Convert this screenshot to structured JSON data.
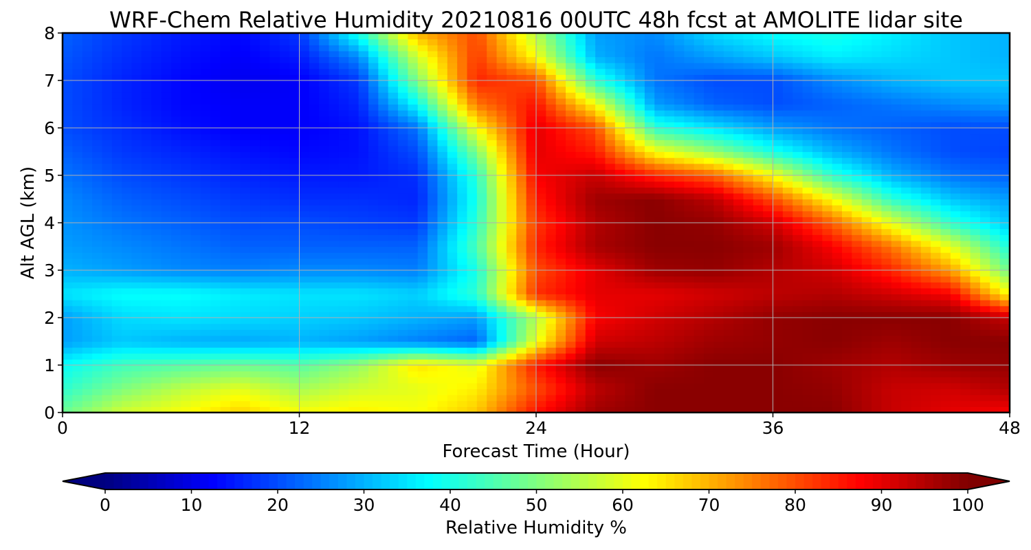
{
  "chart_data": {
    "type": "heatmap",
    "title": "WRF-Chem Relative Humidity 20210816 00UTC 48h fcst at AMOLITE lidar site",
    "xlabel": "Forecast Time (Hour)",
    "ylabel": "Alt AGL (km)",
    "xlim": [
      0,
      48
    ],
    "ylim": [
      0,
      8
    ],
    "xticks": [
      0,
      12,
      24,
      36,
      48
    ],
    "yticks": [
      0,
      1,
      2,
      3,
      4,
      5,
      6,
      7,
      8
    ],
    "grid": true,
    "colormap": "jet",
    "colorbar": {
      "label": "Relative Humidity %",
      "range": [
        0,
        100
      ],
      "ticks": [
        0,
        10,
        20,
        30,
        40,
        50,
        60,
        70,
        80,
        90,
        100
      ],
      "extend": "both",
      "placement": "bottom"
    },
    "x": [
      0,
      3,
      6,
      9,
      12,
      15,
      18,
      21,
      24,
      27,
      30,
      33,
      36,
      39,
      42,
      45,
      48
    ],
    "y": [
      0,
      0.5,
      1,
      1.5,
      2,
      2.5,
      3,
      3.5,
      4,
      4.5,
      5,
      5.5,
      6,
      6.5,
      7,
      7.5,
      8
    ],
    "z": [
      [
        48,
        58,
        62,
        67,
        62,
        64,
        62,
        68,
        86,
        97,
        99,
        99,
        99,
        99,
        93,
        90,
        88
      ],
      [
        42,
        50,
        56,
        60,
        54,
        58,
        60,
        64,
        80,
        94,
        99,
        99,
        99,
        98,
        93,
        92,
        95
      ],
      [
        38,
        44,
        46,
        48,
        46,
        52,
        65,
        60,
        85,
        99,
        97,
        99,
        99,
        97,
        95,
        97,
        98
      ],
      [
        28,
        32,
        30,
        29,
        30,
        28,
        25,
        22,
        60,
        92,
        94,
        97,
        98,
        99,
        97,
        99,
        99
      ],
      [
        28,
        34,
        35,
        34,
        33,
        32,
        30,
        28,
        55,
        88,
        92,
        95,
        98,
        99,
        99,
        99,
        93
      ],
      [
        35,
        38,
        38,
        36,
        35,
        35,
        33,
        42,
        83,
        90,
        90,
        92,
        94,
        95,
        92,
        88,
        62
      ],
      [
        30,
        28,
        26,
        25,
        26,
        26,
        25,
        40,
        80,
        90,
        97,
        98,
        95,
        92,
        84,
        72,
        48
      ],
      [
        28,
        26,
        24,
        22,
        22,
        22,
        22,
        45,
        84,
        96,
        99,
        99,
        97,
        88,
        76,
        60,
        40
      ],
      [
        27,
        24,
        22,
        20,
        20,
        19,
        18,
        42,
        82,
        95,
        99,
        98,
        92,
        78,
        60,
        42,
        32
      ],
      [
        26,
        22,
        20,
        18,
        17,
        17,
        16,
        40,
        85,
        97,
        99,
        94,
        80,
        62,
        42,
        32,
        28
      ],
      [
        24,
        20,
        18,
        16,
        15,
        15,
        17,
        42,
        88,
        93,
        84,
        78,
        62,
        42,
        30,
        24,
        22
      ],
      [
        22,
        18,
        16,
        14,
        13,
        14,
        20,
        50,
        90,
        85,
        62,
        52,
        40,
        30,
        24,
        20,
        19
      ],
      [
        20,
        17,
        14,
        12,
        12,
        14,
        24,
        62,
        90,
        80,
        42,
        35,
        28,
        24,
        22,
        20,
        20
      ],
      [
        20,
        16,
        13,
        12,
        12,
        16,
        38,
        76,
        86,
        62,
        28,
        22,
        20,
        22,
        24,
        26,
        28
      ],
      [
        20,
        16,
        13,
        11,
        12,
        18,
        50,
        84,
        80,
        42,
        24,
        20,
        20,
        26,
        30,
        32,
        32
      ],
      [
        21,
        17,
        14,
        12,
        15,
        26,
        58,
        82,
        62,
        30,
        24,
        28,
        32,
        36,
        34,
        32,
        30
      ],
      [
        22,
        18,
        15,
        13,
        18,
        40,
        70,
        80,
        55,
        28,
        26,
        34,
        38,
        40,
        36,
        32,
        30
      ]
    ]
  }
}
